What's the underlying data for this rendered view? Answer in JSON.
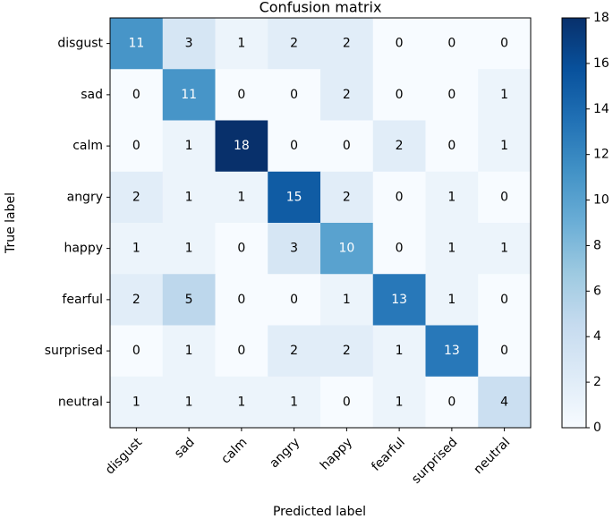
{
  "chart_data": {
    "type": "heatmap",
    "title": "Confusion matrix",
    "xlabel": "Predicted label",
    "ylabel": "True label",
    "x_categories": [
      "disgust",
      "sad",
      "calm",
      "angry",
      "happy",
      "fearful",
      "surprised",
      "neutral"
    ],
    "y_categories": [
      "disgust",
      "sad",
      "calm",
      "angry",
      "happy",
      "fearful",
      "surprised",
      "neutral"
    ],
    "values": [
      [
        11,
        3,
        1,
        2,
        2,
        0,
        0,
        0
      ],
      [
        0,
        11,
        0,
        0,
        2,
        0,
        0,
        1
      ],
      [
        0,
        1,
        18,
        0,
        0,
        2,
        0,
        1
      ],
      [
        2,
        1,
        1,
        15,
        2,
        0,
        1,
        0
      ],
      [
        1,
        1,
        0,
        3,
        10,
        0,
        1,
        1
      ],
      [
        2,
        5,
        0,
        0,
        1,
        13,
        1,
        0
      ],
      [
        0,
        1,
        0,
        2,
        2,
        1,
        13,
        0
      ],
      [
        1,
        1,
        1,
        1,
        0,
        1,
        0,
        4
      ]
    ],
    "colormap": [
      "#f7fbff",
      "#deebf7",
      "#c6dbef",
      "#9ecae1",
      "#6baed6",
      "#4292c6",
      "#2171b5",
      "#08519c",
      "#08306b"
    ],
    "zlim": [
      0,
      18
    ],
    "zticks": [
      0,
      2,
      4,
      6,
      8,
      10,
      12,
      14,
      16,
      18
    ]
  }
}
